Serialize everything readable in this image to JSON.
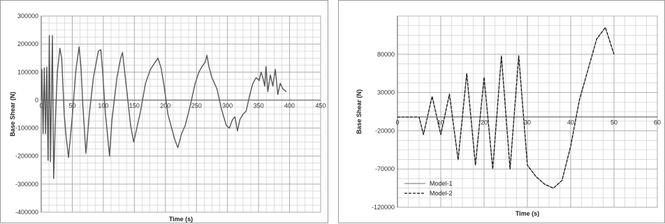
{
  "chart_data": [
    {
      "type": "line",
      "xlabel": "Time (s)",
      "ylabel": "Base Shear (N)",
      "xlim": [
        0,
        450
      ],
      "ylim": [
        -400000,
        300000
      ],
      "x_ticks": [
        0,
        50,
        100,
        150,
        200,
        250,
        300,
        350,
        400,
        450
      ],
      "y_ticks": [
        300000,
        200000,
        100000,
        0,
        -100000,
        -200000,
        -300000,
        -400000
      ],
      "x_tick_labels": [
        "0",
        "50",
        "100",
        "150",
        "200",
        "250",
        "300",
        "350",
        "400",
        "450"
      ],
      "y_tick_labels": [
        "300000",
        "200000",
        "100000",
        "0",
        "-100000",
        "-200000",
        "-300000",
        "-400000"
      ],
      "grid": true,
      "series": [
        {
          "color": "#555555",
          "points": [
            [
              0,
              0
            ],
            [
              1,
              110000
            ],
            [
              3,
              -120000
            ],
            [
              5,
              115000
            ],
            [
              7,
              -120000
            ],
            [
              9,
              118000
            ],
            [
              11,
              -215000
            ],
            [
              13,
              230000
            ],
            [
              15,
              -220000
            ],
            [
              18,
              230000
            ],
            [
              20,
              -280000
            ],
            [
              23,
              -60000
            ],
            [
              26,
              100000
            ],
            [
              30,
              185000
            ],
            [
              33,
              150000
            ],
            [
              37,
              -50000
            ],
            [
              40,
              -130000
            ],
            [
              44,
              -205000
            ],
            [
              50,
              -60000
            ],
            [
              56,
              110000
            ],
            [
              61,
              190000
            ],
            [
              64,
              120000
            ],
            [
              67,
              -20000
            ],
            [
              72,
              -190000
            ],
            [
              78,
              -40000
            ],
            [
              84,
              80000
            ],
            [
              92,
              175000
            ],
            [
              96,
              180000
            ],
            [
              99,
              100000
            ],
            [
              103,
              -40000
            ],
            [
              110,
              -200000
            ],
            [
              114,
              -70000
            ],
            [
              122,
              80000
            ],
            [
              128,
              150000
            ],
            [
              131,
              170000
            ],
            [
              134,
              110000
            ],
            [
              138,
              30000
            ],
            [
              144,
              -90000
            ],
            [
              149,
              -150000
            ],
            [
              152,
              -120000
            ],
            [
              160,
              -40000
            ],
            [
              168,
              60000
            ],
            [
              176,
              110000
            ],
            [
              182,
              130000
            ],
            [
              188,
              150000
            ],
            [
              193,
              115000
            ],
            [
              198,
              50000
            ],
            [
              204,
              -50000
            ],
            [
              210,
              -100000
            ],
            [
              215,
              -140000
            ],
            [
              220,
              -170000
            ],
            [
              226,
              -120000
            ],
            [
              232,
              -90000
            ],
            [
              240,
              -20000
            ],
            [
              248,
              60000
            ],
            [
              254,
              100000
            ],
            [
              259,
              120000
            ],
            [
              264,
              135000
            ],
            [
              267,
              160000
            ],
            [
              270,
              120000
            ],
            [
              275,
              80000
            ],
            [
              283,
              40000
            ],
            [
              290,
              -30000
            ],
            [
              298,
              -90000
            ],
            [
              303,
              -100000
            ],
            [
              308,
              -70000
            ],
            [
              312,
              -60000
            ],
            [
              316,
              -110000
            ],
            [
              320,
              -70000
            ],
            [
              325,
              -50000
            ],
            [
              330,
              -40000
            ],
            [
              336,
              20000
            ],
            [
              341,
              60000
            ],
            [
              346,
              80000
            ],
            [
              351,
              70000
            ],
            [
              354,
              100000
            ],
            [
              357,
              80000
            ],
            [
              360,
              50000
            ],
            [
              362,
              120000
            ],
            [
              365,
              30000
            ],
            [
              369,
              90000
            ],
            [
              373,
              50000
            ],
            [
              377,
              110000
            ],
            [
              381,
              20000
            ],
            [
              385,
              60000
            ],
            [
              389,
              40000
            ],
            [
              395,
              30000
            ]
          ]
        }
      ]
    },
    {
      "type": "line",
      "xlabel": "Time (s)",
      "ylabel": "Base Shear (N)",
      "xlim": [
        0,
        60
      ],
      "ylim": [
        -120000,
        130000
      ],
      "x_ticks": [
        0,
        10,
        20,
        30,
        40,
        50,
        60
      ],
      "y_ticks": [
        80000,
        30000,
        -20000,
        -70000,
        -120000
      ],
      "x_tick_labels": [
        "0",
        "10",
        "20",
        "30",
        "40",
        "50",
        "60"
      ],
      "y_tick_labels": [
        "80000",
        "30000",
        "-20000",
        "-70000",
        "-120000"
      ],
      "grid": true,
      "legend_position": "bottom-left",
      "series": [
        {
          "name": "Model-1",
          "color": "#888888",
          "style": "solid",
          "points": [
            [
              0,
              -2000
            ],
            [
              5,
              -2000
            ],
            [
              6,
              -25000
            ],
            [
              8,
              25000
            ],
            [
              10,
              -25000
            ],
            [
              12,
              28000
            ],
            [
              14,
              -58000
            ],
            [
              16,
              55000
            ],
            [
              18,
              -65000
            ],
            [
              20,
              50000
            ],
            [
              22,
              -70000
            ],
            [
              24,
              78000
            ],
            [
              26,
              -70000
            ],
            [
              28,
              78000
            ],
            [
              30,
              -65000
            ],
            [
              32,
              -80000
            ],
            [
              34,
              -90000
            ],
            [
              36,
              -95000
            ],
            [
              38,
              -85000
            ],
            [
              40,
              -40000
            ],
            [
              42,
              20000
            ],
            [
              44,
              60000
            ],
            [
              46,
              100000
            ],
            [
              48,
              115000
            ],
            [
              50,
              80000
            ]
          ]
        },
        {
          "name": "Model-2",
          "color": "#111111",
          "style": "dashed",
          "points": [
            [
              0,
              -2000
            ],
            [
              5,
              -2000
            ],
            [
              6,
              -25000
            ],
            [
              8,
              25000
            ],
            [
              10,
              -25000
            ],
            [
              12,
              28000
            ],
            [
              14,
              -58000
            ],
            [
              16,
              55000
            ],
            [
              18,
              -65000
            ],
            [
              20,
              50000
            ],
            [
              22,
              -70000
            ],
            [
              24,
              78000
            ],
            [
              26,
              -70000
            ],
            [
              28,
              78000
            ],
            [
              30,
              -65000
            ],
            [
              32,
              -80000
            ],
            [
              34,
              -90000
            ],
            [
              36,
              -95000
            ],
            [
              38,
              -85000
            ],
            [
              40,
              -40000
            ],
            [
              42,
              20000
            ],
            [
              44,
              60000
            ],
            [
              46,
              100000
            ],
            [
              48,
              115000
            ],
            [
              50,
              80000
            ]
          ]
        }
      ]
    }
  ]
}
